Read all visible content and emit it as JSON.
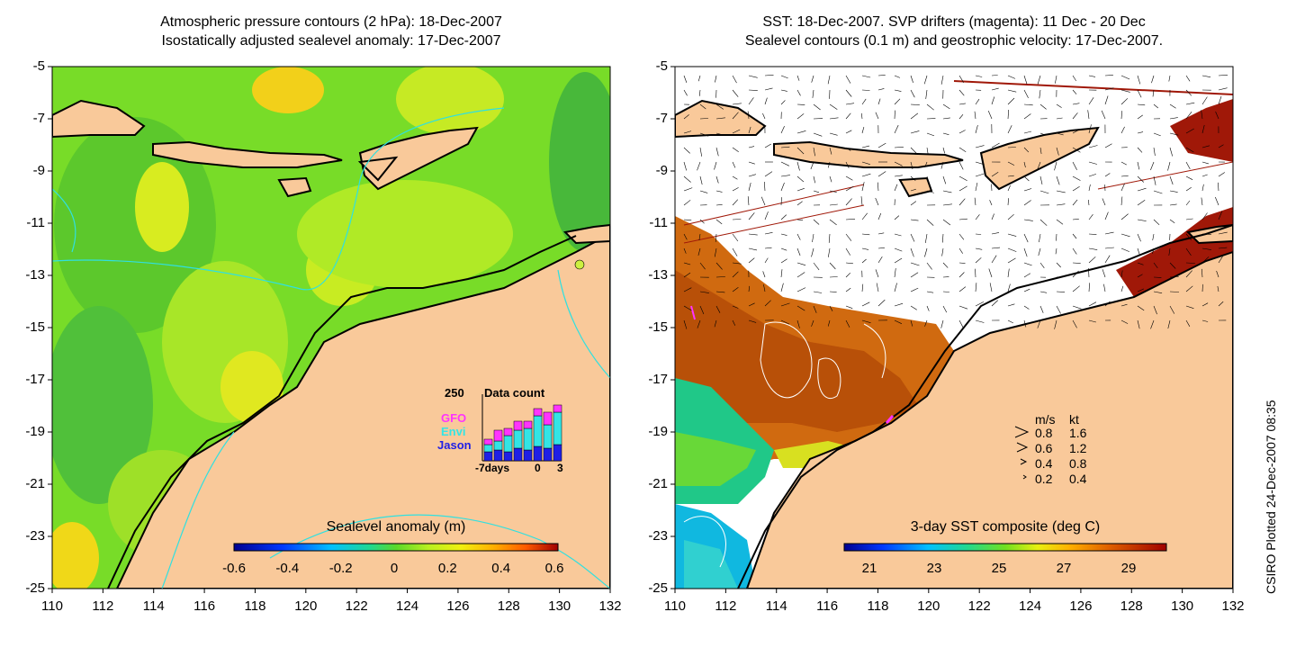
{
  "left_panel": {
    "title_line1": "Atmospheric pressure contours (2 hPa): 18-Dec-2007",
    "title_line2": "Isostatically adjusted sealevel anomaly: 17-Dec-2007",
    "colorbar": {
      "title": "Sealevel anomaly (m)",
      "ticks": [
        "-0.6",
        "-0.4",
        "-0.2",
        "0",
        "0.2",
        "0.4",
        "0.6"
      ]
    },
    "data_count": {
      "max_label": "250",
      "title": "Data count",
      "series": [
        "GFO",
        "Envi",
        "Jason"
      ],
      "x_labels": [
        "-7days",
        "0",
        "3"
      ],
      "series_colors": {
        "GFO": "#ff33ff",
        "Envi": "#33e5e5",
        "Jason": "#1f1fe6"
      }
    }
  },
  "right_panel": {
    "title_line1": "SST: 18-Dec-2007. SVP drifters (magenta): 11 Dec - 20 Dec",
    "title_line2": "Sealevel contours (0.1 m) and geostrophic velocity: 17-Dec-2007.",
    "colorbar": {
      "title": "3-day SST composite (deg C)",
      "ticks": [
        "21",
        "23",
        "25",
        "27",
        "29"
      ]
    },
    "velocity_legend": {
      "header_ms": "m/s",
      "header_kt": "kt",
      "rows": [
        {
          "ms": "0.8",
          "kt": "1.6"
        },
        {
          "ms": "0.6",
          "kt": "1.2"
        },
        {
          "ms": "0.4",
          "kt": "0.8"
        },
        {
          "ms": "0.2",
          "kt": "0.4"
        }
      ]
    }
  },
  "axes": {
    "x_ticks": [
      "110",
      "112",
      "114",
      "116",
      "118",
      "120",
      "122",
      "124",
      "126",
      "128",
      "130",
      "132"
    ],
    "y_ticks": [
      "-5",
      "-7",
      "-9",
      "-11",
      "-13",
      "-15",
      "-17",
      "-19",
      "-21",
      "-23",
      "-25"
    ]
  },
  "credit": "CSIRO Plotted 24-Dec-2007 08:35",
  "colors": {
    "land": "#f9c99a",
    "sla_bg": "#7ee02a",
    "sst_warm": "#d0700a"
  }
}
